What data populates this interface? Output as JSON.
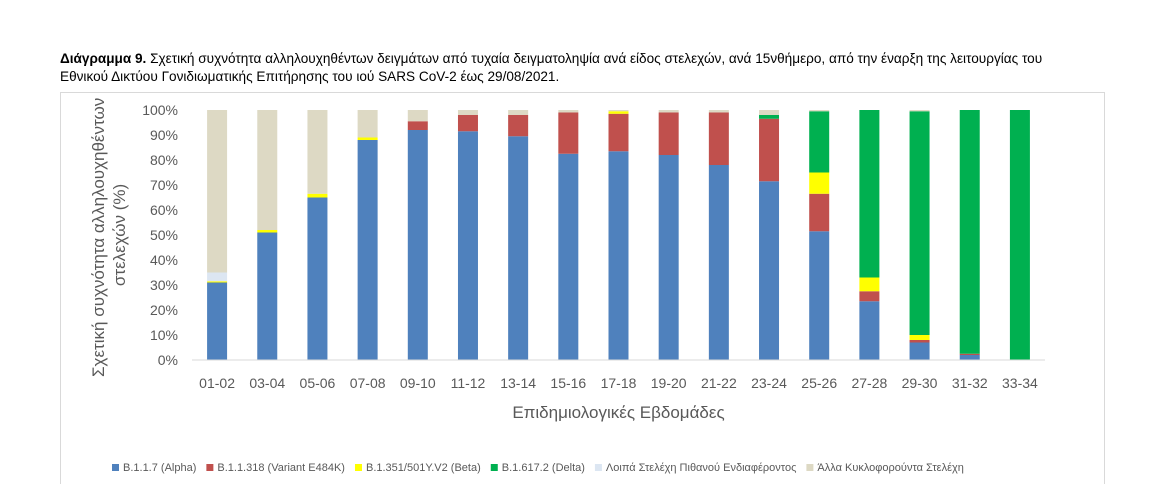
{
  "caption": {
    "label": "Διάγραμμα 9.",
    "text": " Σχετική συχνότητα αλληλουχηθέντων δειγμάτων από τυχαία δειγματοληψία ανά είδος στελεχών, ανά 15νθήμερο, από την έναρξη της λειτουργίας του Εθνικού Δικτύου Γονιδιωματικής Επιτήρησης του ιού SARS CoV-2 έως 29/08/2021."
  },
  "chart_data": {
    "type": "bar",
    "stacked": true,
    "categories": [
      "01-02",
      "03-04",
      "05-06",
      "07-08",
      "09-10",
      "11-12",
      "13-14",
      "15-16",
      "17-18",
      "19-20",
      "21-22",
      "23-24",
      "25-26",
      "27-28",
      "29-30",
      "31-32",
      "33-34"
    ],
    "series": [
      {
        "name": "B.1.1.7 (Alpha)",
        "color": "#4f81bd",
        "values": [
          31,
          51,
          65,
          88,
          92,
          91.5,
          89.5,
          82.5,
          83.5,
          82,
          78,
          71.5,
          51.5,
          23.5,
          7,
          2,
          0
        ]
      },
      {
        "name": "B.1.1.318 (Variant E484K)",
        "color": "#c0504d",
        "values": [
          0,
          0,
          0,
          0,
          3.5,
          6.5,
          8.5,
          16.5,
          15,
          17,
          21,
          25,
          15,
          4,
          1,
          0.5,
          0
        ]
      },
      {
        "name": "B.1.351/501Y.V2 (Beta)",
        "color": "#ffff00",
        "values": [
          0.5,
          1,
          1.5,
          1,
          0,
          0,
          0,
          0,
          1,
          0,
          0,
          0,
          8.5,
          5.5,
          2,
          0,
          0
        ]
      },
      {
        "name": "B.1.617.2 (Delta)",
        "color": "#00b050",
        "values": [
          0,
          0,
          0,
          0,
          0,
          0,
          0,
          0,
          0,
          0,
          0,
          1.5,
          24.5,
          67,
          89.5,
          97.5,
          100
        ]
      },
      {
        "name": "Λοιπά Στελέχη Πιθανού Ενδιαφέροντος",
        "color": "#dce6f2",
        "values": [
          3.5,
          0,
          0,
          0,
          0,
          0,
          0,
          0,
          0,
          0,
          0,
          0,
          0,
          0,
          0,
          0,
          0
        ]
      },
      {
        "name": "Άλλα Κυκλοφορούντα Στελέχη",
        "color": "#ddd9c4",
        "values": [
          65,
          48,
          33.5,
          11,
          4.5,
          2,
          2,
          1,
          0.5,
          1,
          1,
          2,
          0.5,
          0,
          0.5,
          0,
          0
        ]
      }
    ],
    "ylim": [
      0,
      100
    ],
    "yticks": [
      "0%",
      "10%",
      "20%",
      "30%",
      "40%",
      "50%",
      "60%",
      "70%",
      "80%",
      "90%",
      "100%"
    ],
    "xlabel": "Επιδημιολογικές Εβδομάδες",
    "ylabel_lines": [
      "Σχετική συχνότητα αλληλουχηθέντων",
      "στελεχών (%)"
    ],
    "grid": false,
    "legend": "bottom"
  }
}
